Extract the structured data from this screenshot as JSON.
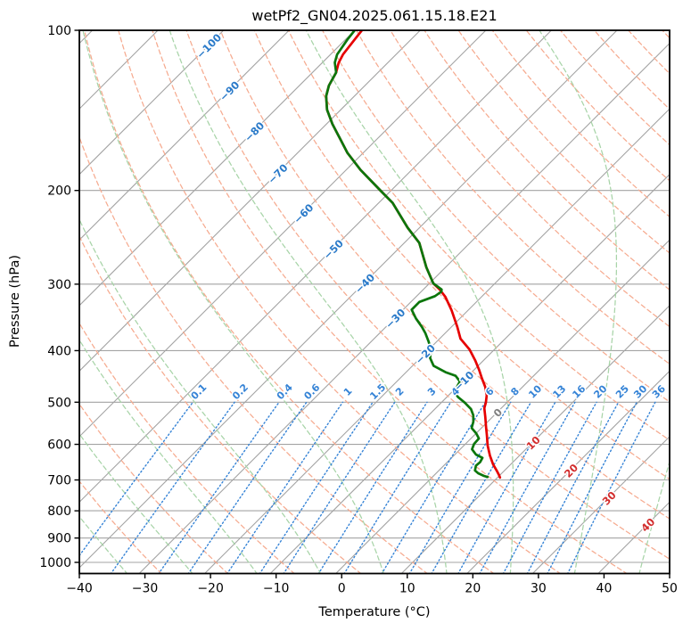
{
  "title": "wetPf2_GN04.2025.061.15.18.E21",
  "axes": {
    "x_label": "Temperature (°C)",
    "y_label": "Pressure (hPa)",
    "x_ticks": [
      -40,
      -30,
      -20,
      -10,
      0,
      10,
      20,
      30,
      40,
      50
    ],
    "y_ticks": [
      100,
      200,
      300,
      400,
      500,
      600,
      700,
      800,
      900,
      1000
    ],
    "xlim": [
      -40,
      50
    ],
    "pressure_lim": [
      100,
      1050
    ]
  },
  "chart_data": {
    "type": "line",
    "plot_kind": "skew-t-log-p",
    "skew_deg": 45,
    "grid": true,
    "isotherms": {
      "step": 10,
      "min": -120,
      "max": 40,
      "line_color": "#a3a3a3",
      "label_colors": {
        "negative": "#2a7ac9",
        "zero": "#808080",
        "positive": "#d22d2d"
      },
      "labels": [
        {
          "value": -100,
          "pressure": 107
        },
        {
          "value": -90,
          "pressure": 130
        },
        {
          "value": -80,
          "pressure": 155
        },
        {
          "value": -70,
          "pressure": 186
        },
        {
          "value": -60,
          "pressure": 221
        },
        {
          "value": -50,
          "pressure": 258
        },
        {
          "value": -40,
          "pressure": 299
        },
        {
          "value": -30,
          "pressure": 348
        },
        {
          "value": -20,
          "pressure": 406
        },
        {
          "value": -10,
          "pressure": 456
        },
        {
          "value": 0,
          "pressure": 523
        },
        {
          "value": 10,
          "pressure": 596
        },
        {
          "value": 20,
          "pressure": 672
        },
        {
          "value": 30,
          "pressure": 757
        },
        {
          "value": 40,
          "pressure": 850
        }
      ]
    },
    "dry_adiabats": {
      "theta_min": -30,
      "theta_max": 190,
      "step": 10,
      "color": "#f6ab90"
    },
    "moist_adiabats": {
      "thetaw_values": [
        -45,
        -35,
        -25,
        -15,
        -5,
        5,
        15,
        25,
        35,
        45
      ],
      "color": "#a8d4a8"
    },
    "mixing_ratios": {
      "values": [
        0.1,
        0.2,
        0.4,
        0.6,
        1,
        1.5,
        2,
        3,
        4,
        6,
        8,
        10,
        13,
        16,
        20,
        25,
        30,
        36
      ],
      "top_pressure": 500,
      "label_pressure": 477,
      "color": "#3583d6"
    },
    "series": [
      {
        "name": "temperature",
        "color": "#e60000",
        "points_p_t": [
          [
            100,
            -78.9
          ],
          [
            104,
            -78.6
          ],
          [
            111,
            -78.1
          ],
          [
            115,
            -77.5
          ],
          [
            120,
            -76.4
          ],
          [
            127,
            -75.5
          ],
          [
            133,
            -74.3
          ],
          [
            141,
            -72.1
          ],
          [
            150,
            -69.1
          ],
          [
            161,
            -65.3
          ],
          [
            170,
            -62.4
          ],
          [
            183,
            -57.8
          ],
          [
            201,
            -51.3
          ],
          [
            211,
            -47.9
          ],
          [
            235,
            -41.8
          ],
          [
            251,
            -37.7
          ],
          [
            279,
            -32.9
          ],
          [
            299,
            -29.4
          ],
          [
            307,
            -27.5
          ],
          [
            317,
            -25.5
          ],
          [
            336,
            -22.5
          ],
          [
            361,
            -19.1
          ],
          [
            380,
            -16.8
          ],
          [
            398,
            -13.8
          ],
          [
            417,
            -11.3
          ],
          [
            434,
            -9.3
          ],
          [
            451,
            -7.5
          ],
          [
            468,
            -5.7
          ],
          [
            485,
            -4.2
          ],
          [
            501,
            -3.2
          ],
          [
            513,
            -2.6
          ],
          [
            533,
            -1.1
          ],
          [
            556,
            0.5
          ],
          [
            578,
            2.0
          ],
          [
            603,
            3.6
          ],
          [
            630,
            5.5
          ],
          [
            654,
            7.3
          ],
          [
            672,
            8.8
          ],
          [
            686,
            9.9
          ],
          [
            693,
            10.4
          ]
        ]
      },
      {
        "name": "dewpoint",
        "color": "#0b760b",
        "points_p_t": [
          [
            100,
            -80.0
          ],
          [
            104,
            -79.7
          ],
          [
            111,
            -79.0
          ],
          [
            115,
            -78.1
          ],
          [
            120,
            -76.4
          ],
          [
            127,
            -75.5
          ],
          [
            133,
            -74.3
          ],
          [
            141,
            -72.1
          ],
          [
            150,
            -69.1
          ],
          [
            161,
            -65.3
          ],
          [
            170,
            -62.4
          ],
          [
            183,
            -57.8
          ],
          [
            201,
            -51.3
          ],
          [
            211,
            -47.9
          ],
          [
            235,
            -41.8
          ],
          [
            251,
            -37.7
          ],
          [
            279,
            -32.9
          ],
          [
            299,
            -29.4
          ],
          [
            307,
            -27.2
          ],
          [
            310,
            -26.9
          ],
          [
            316,
            -27.2
          ],
          [
            324,
            -28.7
          ],
          [
            335,
            -28.7
          ],
          [
            348,
            -26.7
          ],
          [
            361,
            -24.5
          ],
          [
            371,
            -23.0
          ],
          [
            385,
            -21.2
          ],
          [
            399,
            -19.6
          ],
          [
            413,
            -18.5
          ],
          [
            427,
            -16.8
          ],
          [
            439,
            -14.0
          ],
          [
            446,
            -11.9
          ],
          [
            457,
            -10.4
          ],
          [
            468,
            -10.0
          ],
          [
            479,
            -9.5
          ],
          [
            489,
            -8.3
          ],
          [
            501,
            -6.4
          ],
          [
            515,
            -4.5
          ],
          [
            529,
            -3.2
          ],
          [
            544,
            -2.2
          ],
          [
            559,
            -1.5
          ],
          [
            572,
            0.0
          ],
          [
            585,
            1.2
          ],
          [
            599,
            1.3
          ],
          [
            613,
            1.8
          ],
          [
            627,
            3.2
          ],
          [
            636,
            4.7
          ],
          [
            648,
            5.0
          ],
          [
            658,
            4.9
          ],
          [
            672,
            5.5
          ],
          [
            680,
            6.4
          ],
          [
            688,
            7.7
          ],
          [
            691,
            8.4
          ]
        ]
      }
    ]
  }
}
